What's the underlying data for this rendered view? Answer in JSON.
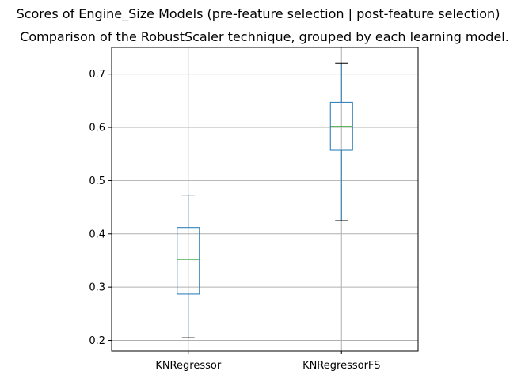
{
  "chart_data": {
    "type": "boxplot",
    "suptitle": "Scores of Engine_Size Models (pre-feature selection | post-feature selection)",
    "title": "Comparison of the RobustScaler technique, grouped by each learning model.",
    "xlabel": "",
    "ylabel": "",
    "ylim": [
      0.18,
      0.75
    ],
    "yticks": [
      "0.2",
      "0.3",
      "0.4",
      "0.5",
      "0.6",
      "0.7"
    ],
    "grid": true,
    "categories": [
      "KNRegressor",
      "KNRegressorFS"
    ],
    "boxes": [
      {
        "category": "KNRegressor",
        "whisker_low": 0.205,
        "q1": 0.287,
        "median": 0.352,
        "q3": 0.412,
        "whisker_high": 0.473
      },
      {
        "category": "KNRegressorFS",
        "whisker_low": 0.425,
        "q1": 0.557,
        "median": 0.602,
        "q3": 0.647,
        "whisker_high": 0.72
      }
    ],
    "colors": {
      "box": "#1f77b4",
      "median": "#2ca02c",
      "whisker": "#1f77b4",
      "cap": "#000000",
      "grid": "#b0b0b0"
    }
  }
}
